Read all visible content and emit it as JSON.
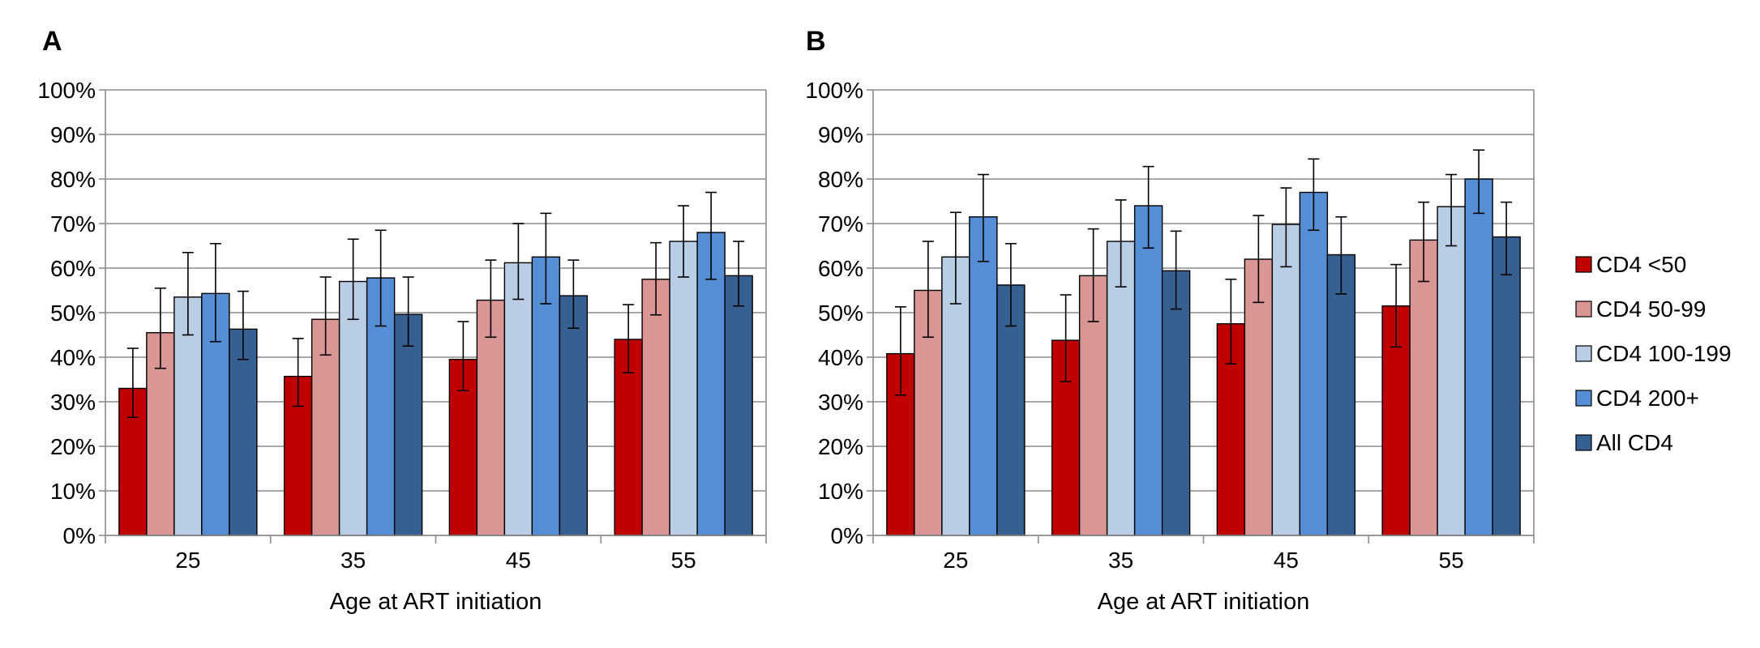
{
  "chart_data": [
    {
      "type": "bar",
      "panel": "A",
      "xlabel": "Age at ART initiation",
      "ylabel": "",
      "categories": [
        "25",
        "35",
        "45",
        "55"
      ],
      "ylim": [
        0,
        100
      ],
      "yticks": [
        "0%",
        "10%",
        "20%",
        "30%",
        "40%",
        "50%",
        "60%",
        "70%",
        "80%",
        "90%",
        "100%"
      ],
      "grid": true,
      "series": [
        {
          "name": "CD4 <50",
          "color": "#c00000",
          "values": [
            33,
            35.7,
            39.5,
            44
          ],
          "err_low": [
            26.5,
            29,
            32.5,
            36.5
          ],
          "err_high": [
            42,
            44.2,
            48,
            51.8
          ]
        },
        {
          "name": "CD4 50-99",
          "color": "#d99694",
          "values": [
            45.5,
            48.5,
            52.8,
            57.5
          ],
          "err_low": [
            37.5,
            40.5,
            44.5,
            49.5
          ],
          "err_high": [
            55.5,
            58,
            61.8,
            65.7
          ]
        },
        {
          "name": "CD4 100-199",
          "color": "#b9cde5",
          "values": [
            53.5,
            57,
            61.2,
            66
          ],
          "err_low": [
            45,
            48.5,
            53,
            58
          ],
          "err_high": [
            63.5,
            66.5,
            70,
            74
          ]
        },
        {
          "name": "CD4 200+",
          "color": "#558ed5",
          "values": [
            54.3,
            57.8,
            62.5,
            68
          ],
          "err_low": [
            43.5,
            47,
            52,
            57.5
          ],
          "err_high": [
            65.5,
            68.5,
            72.3,
            77
          ]
        },
        {
          "name": "All CD4",
          "color": "#376092",
          "values": [
            46.3,
            49.6,
            53.8,
            58.3
          ],
          "err_low": [
            39.5,
            42.5,
            46.5,
            51.5
          ],
          "err_high": [
            54.8,
            58,
            61.8,
            66
          ]
        }
      ]
    },
    {
      "type": "bar",
      "panel": "B",
      "xlabel": "Age at ART initiation",
      "ylabel": "",
      "categories": [
        "25",
        "35",
        "45",
        "55"
      ],
      "ylim": [
        0,
        100
      ],
      "yticks": [
        "0%",
        "10%",
        "20%",
        "30%",
        "40%",
        "50%",
        "60%",
        "70%",
        "80%",
        "90%",
        "100%"
      ],
      "grid": true,
      "legend_position": "right",
      "series": [
        {
          "name": "CD4 <50",
          "color": "#c00000",
          "values": [
            40.8,
            43.8,
            47.5,
            51.5
          ],
          "err_low": [
            31.5,
            34.5,
            38.5,
            42.3
          ],
          "err_high": [
            51.3,
            54,
            57.5,
            60.8
          ]
        },
        {
          "name": "CD4 50-99",
          "color": "#d99694",
          "values": [
            55,
            58.3,
            62,
            66.3
          ],
          "err_low": [
            44.5,
            48,
            52.3,
            57
          ],
          "err_high": [
            66,
            68.8,
            71.8,
            74.8
          ]
        },
        {
          "name": "CD4 100-199",
          "color": "#b9cde5",
          "values": [
            62.5,
            66,
            69.8,
            73.8
          ],
          "err_low": [
            52,
            55.8,
            60.3,
            65
          ],
          "err_high": [
            72.5,
            75.3,
            78,
            81
          ]
        },
        {
          "name": "CD4 200+",
          "color": "#558ed5",
          "values": [
            71.5,
            74,
            77,
            80
          ],
          "err_low": [
            61.5,
            64.5,
            68.5,
            72.3
          ],
          "err_high": [
            81,
            82.8,
            84.5,
            86.5
          ]
        },
        {
          "name": "All CD4",
          "color": "#376092",
          "values": [
            56.2,
            59.4,
            63,
            67
          ],
          "err_low": [
            47,
            50.8,
            54.2,
            58.5
          ],
          "err_high": [
            65.5,
            68.3,
            71.5,
            74.8
          ]
        }
      ]
    }
  ]
}
